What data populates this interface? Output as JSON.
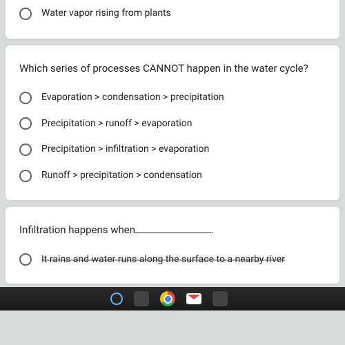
{
  "colors": {
    "page_bg": "#d8dcd8",
    "card_bg": "#ffffff",
    "text": "#202124",
    "radio_border": "#5f6368",
    "taskbar_bg": "#1a1a1a"
  },
  "question_prev": {
    "visible_option": "Water vapor rising from plants"
  },
  "question_main": {
    "prompt": "Which series of processes CANNOT happen in the water cycle?",
    "options": [
      "Evaporation > condensation > precipitation",
      "Precipitation > runoff > evaporation",
      "Precipitation > infiltration > evaporation",
      "Runoff > precipitation > condensation"
    ]
  },
  "question_next": {
    "prompt_prefix": "Infiltration happens when",
    "prompt_suffix": ".",
    "partial_option": "It rains and water runs along the surface to a nearby river"
  },
  "typography": {
    "question_fontsize": 15,
    "option_fontsize": 14
  }
}
